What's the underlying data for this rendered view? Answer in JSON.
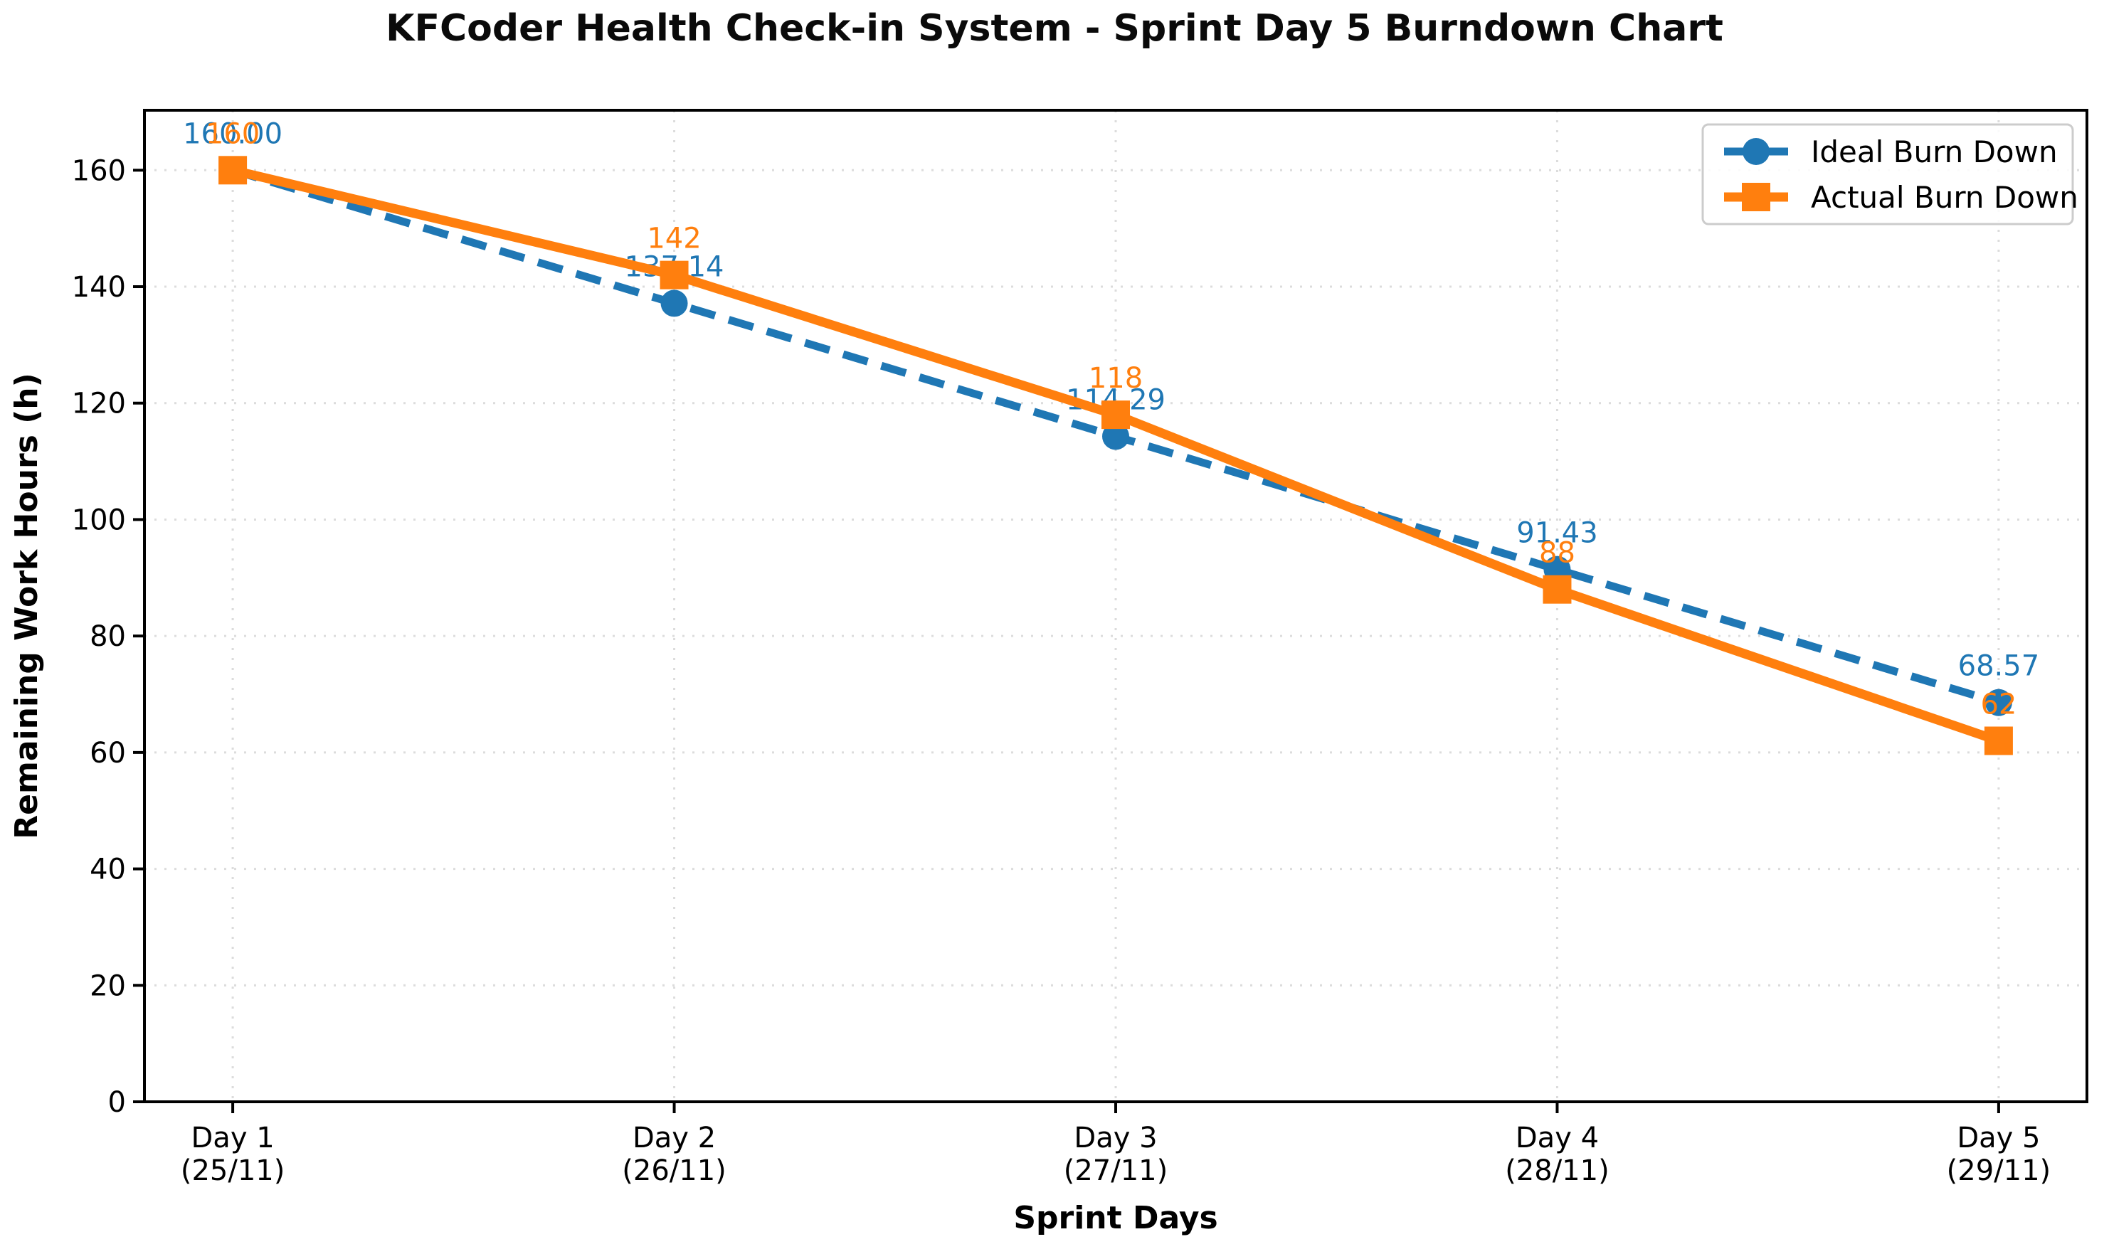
{
  "chart_data": {
    "type": "line",
    "title": "KFCoder Health Check-in System - Sprint Day 5 Burndown Chart",
    "xlabel": "Sprint Days",
    "ylabel": "Remaining Work Hours (h)",
    "categories": [
      {
        "day": "Day 1",
        "date": "(25/11)"
      },
      {
        "day": "Day 2",
        "date": "(26/11)"
      },
      {
        "day": "Day 3",
        "date": "(27/11)"
      },
      {
        "day": "Day 4",
        "date": "(28/11)"
      },
      {
        "day": "Day 5",
        "date": "(29/11)"
      }
    ],
    "x": [
      0,
      1,
      2,
      3,
      4
    ],
    "yticks": [
      0,
      20,
      40,
      60,
      80,
      100,
      120,
      140,
      160
    ],
    "ylim": [
      0,
      170.3
    ],
    "xlim": [
      -0.2,
      4.2
    ],
    "grid": "dotted",
    "grid_color": "#dcdcdc",
    "legend_position": "upper right",
    "series": [
      {
        "name": "Ideal Burn Down",
        "color": "#1f77b4",
        "marker": "circle",
        "line_style": "dashed",
        "values": [
          160.0,
          137.14,
          114.29,
          91.43,
          68.57
        ],
        "labels": [
          "160.00",
          "137.14",
          "114.29",
          "91.43",
          "68.57"
        ]
      },
      {
        "name": "Actual Burn Down",
        "color": "#ff7f0e",
        "marker": "square",
        "line_style": "solid",
        "values": [
          160,
          142,
          118,
          88,
          62
        ],
        "labels": [
          "160",
          "142",
          "118",
          "88",
          "62"
        ]
      }
    ]
  }
}
